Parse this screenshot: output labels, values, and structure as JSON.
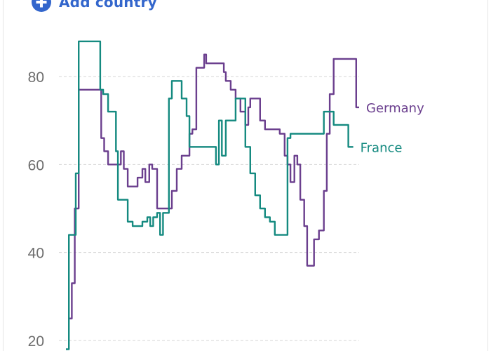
{
  "controls": {
    "add_country_label": "Add country",
    "add_icon": "plus-circle-icon",
    "accent_color": "#3366cc"
  },
  "chart_data": {
    "type": "line",
    "title": "",
    "xlabel": "",
    "ylabel": "",
    "ylim": [
      18,
      90
    ],
    "yticks": [
      20,
      40,
      60,
      80
    ],
    "grid": true,
    "legend": "inline-right",
    "series": [
      {
        "name": "Germany",
        "color": "#6b3f8e",
        "points": [
          [
            0,
            25
          ],
          [
            0.3,
            33
          ],
          [
            0.6,
            50
          ],
          [
            1,
            77
          ],
          [
            1.5,
            77
          ],
          [
            2,
            77
          ],
          [
            2.5,
            77
          ],
          [
            3,
            77
          ],
          [
            3.3,
            66
          ],
          [
            3.6,
            63
          ],
          [
            4,
            60
          ],
          [
            4.5,
            60
          ],
          [
            5,
            60
          ],
          [
            5.3,
            63
          ],
          [
            5.6,
            59
          ],
          [
            6,
            55
          ],
          [
            6.5,
            55
          ],
          [
            7,
            57
          ],
          [
            7.5,
            59
          ],
          [
            7.8,
            56
          ],
          [
            8.2,
            60
          ],
          [
            8.5,
            59
          ],
          [
            9,
            50
          ],
          [
            9.5,
            50
          ],
          [
            10,
            50
          ],
          [
            10.5,
            54
          ],
          [
            11,
            59
          ],
          [
            11.5,
            62
          ],
          [
            12,
            62
          ],
          [
            12.3,
            67
          ],
          [
            12.6,
            68
          ],
          [
            13,
            82
          ],
          [
            13.5,
            82
          ],
          [
            13.8,
            85
          ],
          [
            14,
            83
          ],
          [
            14.5,
            83
          ],
          [
            15,
            83
          ],
          [
            15.5,
            83
          ],
          [
            15.8,
            81
          ],
          [
            16,
            79
          ],
          [
            16.5,
            77
          ],
          [
            17,
            75
          ],
          [
            17.5,
            72
          ],
          [
            18,
            69
          ],
          [
            18.3,
            73
          ],
          [
            18.5,
            75
          ],
          [
            19,
            75
          ],
          [
            19.5,
            70
          ],
          [
            20,
            68
          ],
          [
            20.5,
            68
          ],
          [
            21,
            68
          ],
          [
            21.5,
            67
          ],
          [
            22,
            62
          ],
          [
            22.3,
            60
          ],
          [
            22.6,
            56
          ],
          [
            23,
            62
          ],
          [
            23.3,
            60
          ],
          [
            23.6,
            52
          ],
          [
            24,
            46
          ],
          [
            24.3,
            37
          ],
          [
            24.6,
            37
          ],
          [
            25,
            43
          ],
          [
            25.5,
            45
          ],
          [
            26,
            54
          ],
          [
            26.3,
            67
          ],
          [
            26.6,
            76
          ],
          [
            27,
            84
          ],
          [
            27.5,
            84
          ],
          [
            28,
            84
          ],
          [
            28.5,
            84
          ],
          [
            29,
            84
          ],
          [
            29.3,
            73
          ],
          [
            29.6,
            73
          ]
        ]
      },
      {
        "name": "France",
        "color": "#158a80",
        "points": [
          [
            -0.3,
            18
          ],
          [
            0,
            44
          ],
          [
            0.5,
            44
          ],
          [
            0.7,
            58
          ],
          [
            1,
            88
          ],
          [
            1.5,
            88
          ],
          [
            2,
            88
          ],
          [
            2.5,
            88
          ],
          [
            3,
            88
          ],
          [
            3.2,
            77
          ],
          [
            3.5,
            76
          ],
          [
            4,
            72
          ],
          [
            4.5,
            72
          ],
          [
            4.8,
            63
          ],
          [
            5,
            52
          ],
          [
            5.5,
            52
          ],
          [
            6,
            47
          ],
          [
            6.5,
            46
          ],
          [
            7,
            46
          ],
          [
            7.5,
            47
          ],
          [
            8,
            48
          ],
          [
            8.3,
            46
          ],
          [
            8.6,
            48
          ],
          [
            9,
            49
          ],
          [
            9.3,
            44
          ],
          [
            9.6,
            49
          ],
          [
            10,
            49
          ],
          [
            10.2,
            75
          ],
          [
            10.5,
            79
          ],
          [
            11,
            79
          ],
          [
            11.5,
            75
          ],
          [
            12,
            71
          ],
          [
            12.3,
            64
          ],
          [
            12.6,
            64
          ],
          [
            13,
            64
          ],
          [
            14,
            64
          ],
          [
            15,
            60
          ],
          [
            15.3,
            70
          ],
          [
            15.6,
            62
          ],
          [
            16,
            70
          ],
          [
            16.5,
            70
          ],
          [
            17,
            75
          ],
          [
            17.5,
            75
          ],
          [
            18,
            64
          ],
          [
            18.5,
            58
          ],
          [
            19,
            53
          ],
          [
            19.5,
            50
          ],
          [
            20,
            48
          ],
          [
            20.5,
            47
          ],
          [
            21,
            44
          ],
          [
            21.5,
            44
          ],
          [
            22,
            44
          ],
          [
            22.3,
            66
          ],
          [
            22.6,
            67
          ],
          [
            23,
            67
          ],
          [
            24,
            67
          ],
          [
            25,
            67
          ],
          [
            25.5,
            67
          ],
          [
            26,
            72
          ],
          [
            26.5,
            72
          ],
          [
            27,
            69
          ],
          [
            27.5,
            69
          ],
          [
            28,
            69
          ],
          [
            28.5,
            64
          ],
          [
            29,
            64
          ]
        ]
      }
    ]
  }
}
